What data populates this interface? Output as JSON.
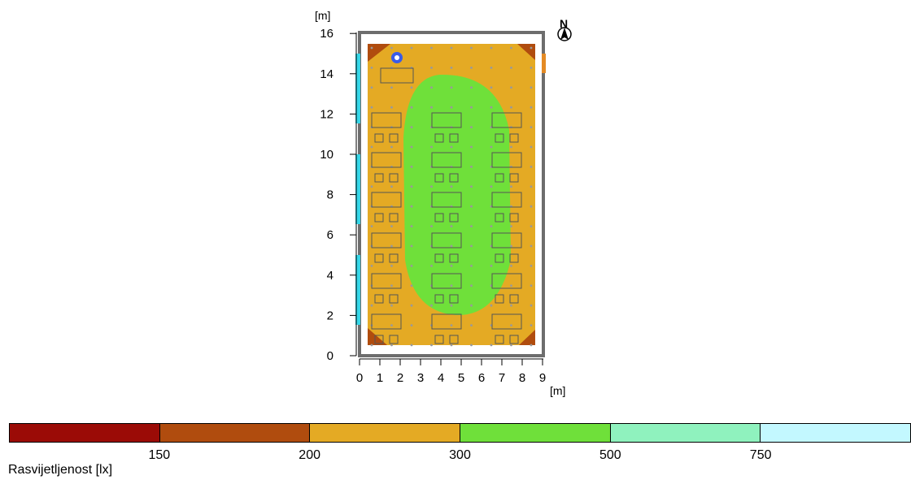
{
  "plan": {
    "y_unit": "[m]",
    "x_unit": "[m]",
    "north_label": "N",
    "y_ticks": [
      0,
      2,
      4,
      6,
      8,
      10,
      12,
      14,
      16
    ],
    "x_ticks": [
      0,
      1,
      2,
      3,
      4,
      5,
      6,
      7,
      8,
      9
    ],
    "room_width_m": 9,
    "room_length_m": 16
  },
  "legend": {
    "title": "Rasvijetljenost [lx]",
    "ticks": [
      "150",
      "200",
      "300",
      "500",
      "750"
    ],
    "colors": [
      "#9b0b06",
      "#b04c0e",
      "#e4aa24",
      "#6fe03a",
      "#8ff2be",
      "#c3f8ff"
    ]
  }
}
